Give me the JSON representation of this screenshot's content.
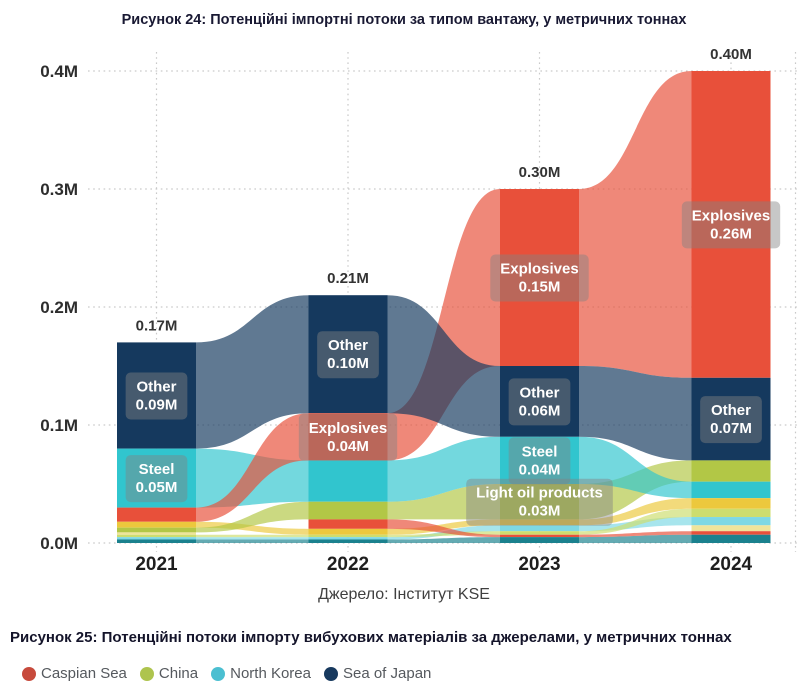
{
  "figure24": {
    "title": "Рисунок 24: Потенційні імпортні потоки за типом вантажу, у метричних тоннах",
    "source": "Джерело: Інститут KSE"
  },
  "figure25": {
    "title": "Рисунок 25: Потенційні потоки імпорту вибухових матеріалів за джерелами, у метричних тоннах",
    "legend": [
      {
        "label": "Caspian Sea",
        "color": "#c74a3c"
      },
      {
        "label": "China",
        "color": "#aec44e"
      },
      {
        "label": "North Korea",
        "color": "#4bbfd1"
      },
      {
        "label": "Sea of Japan",
        "color": "#17395e"
      }
    ]
  },
  "chart_data": [
    {
      "type": "area",
      "subtype": "flow-sankey-bump",
      "title": "Рисунок 24: Потенційні імпортні потоки за типом вантажу, у метричних тоннах",
      "source": "Джерело: Інститут KSE",
      "xlabel": "",
      "ylabel": "метричні тонни",
      "grid": "dotted",
      "legend_position": "none",
      "years": [
        "2021",
        "2022",
        "2023",
        "2024"
      ],
      "totals": [
        {
          "label": "0.17M",
          "value": 0.17
        },
        {
          "label": "0.21M",
          "value": 0.21
        },
        {
          "label": "0.30M",
          "value": 0.3
        },
        {
          "label": "0.40M",
          "value": 0.4
        }
      ],
      "y_axis": {
        "range": [
          0,
          0.4
        ],
        "ticks": [
          {
            "label": "0.4M",
            "value": 0.4
          },
          {
            "label": "0.3M",
            "value": 0.3
          },
          {
            "label": "0.2M",
            "value": 0.2
          },
          {
            "label": "0.1M",
            "value": 0.1
          },
          {
            "label": "0.0M",
            "value": 0.0
          }
        ]
      },
      "categories": {
        "red": {
          "name": "Explosives",
          "color": "#e8503a"
        },
        "navy": {
          "name": "Other",
          "color": "#15395e"
        },
        "teal": {
          "name": "Steel",
          "color": "#31c5ce"
        },
        "olive": {
          "name": "Light oil products",
          "color": "#b2c746"
        },
        "yellow": {
          "name": "",
          "color": "#ecc83d"
        },
        "lightgreen": {
          "name": "",
          "color": "#cddd6e"
        },
        "cyan": {
          "name": "",
          "color": "#7ed8e4"
        },
        "lightyellow": {
          "name": "",
          "color": "#efe49b"
        },
        "redsmall": {
          "name": "",
          "color": "#e8503a"
        },
        "darkteal": {
          "name": "",
          "color": "#1b818e"
        }
      },
      "paint_order": [
        "darkteal",
        "cyan",
        "lightyellow",
        "lightgreen",
        "yellow",
        "olive",
        "redsmall",
        "teal",
        "red",
        "navy"
      ],
      "stacks": [
        {
          "year": "2021",
          "total": 0.17,
          "segments": [
            {
              "cat": "navy",
              "value": 0.09,
              "label": "Other",
              "value_label": "0.09M"
            },
            {
              "cat": "teal",
              "value": 0.05,
              "label": "Steel",
              "value_label": "0.05M"
            },
            {
              "cat": "red",
              "value": 0.012
            },
            {
              "cat": "yellow",
              "value": 0.005
            },
            {
              "cat": "olive",
              "value": 0.004
            },
            {
              "cat": "lightyellow",
              "value": 0.002
            },
            {
              "cat": "lightgreen",
              "value": 0.002
            },
            {
              "cat": "cyan",
              "value": 0.002
            },
            {
              "cat": "darkteal",
              "value": 0.003
            }
          ]
        },
        {
          "year": "2022",
          "total": 0.21,
          "segments": [
            {
              "cat": "navy",
              "value": 0.1,
              "label": "Other",
              "value_label": "0.10M"
            },
            {
              "cat": "red",
              "value": 0.04,
              "label": "Explosives",
              "value_label": "0.04M"
            },
            {
              "cat": "teal",
              "value": 0.035
            },
            {
              "cat": "olive",
              "value": 0.015
            },
            {
              "cat": "redsmall",
              "value": 0.008
            },
            {
              "cat": "yellow",
              "value": 0.005
            },
            {
              "cat": "lightgreen",
              "value": 0.002
            },
            {
              "cat": "cyan",
              "value": 0.002
            },
            {
              "cat": "darkteal",
              "value": 0.003
            }
          ]
        },
        {
          "year": "2023",
          "total": 0.3,
          "segments": [
            {
              "cat": "red",
              "value": 0.15,
              "label": "Explosives",
              "value_label": "0.15M"
            },
            {
              "cat": "navy",
              "value": 0.06,
              "label": "Other",
              "value_label": "0.06M"
            },
            {
              "cat": "teal",
              "value": 0.04,
              "label": "Steel",
              "value_label": "0.04M"
            },
            {
              "cat": "olive",
              "value": 0.03,
              "label": "Light oil products",
              "value_label": "0.03M"
            },
            {
              "cat": "yellow",
              "value": 0.005
            },
            {
              "cat": "cyan",
              "value": 0.005
            },
            {
              "cat": "lightgreen",
              "value": 0.003
            },
            {
              "cat": "redsmall",
              "value": 0.002
            },
            {
              "cat": "darkteal",
              "value": 0.005
            }
          ]
        },
        {
          "year": "2024",
          "total": 0.4,
          "segments": [
            {
              "cat": "red",
              "value": 0.26,
              "label": "Explosives",
              "value_label": "0.26M"
            },
            {
              "cat": "navy",
              "value": 0.07,
              "label": "Other",
              "value_label": "0.07M"
            },
            {
              "cat": "olive",
              "value": 0.018
            },
            {
              "cat": "teal",
              "value": 0.014
            },
            {
              "cat": "yellow",
              "value": 0.009
            },
            {
              "cat": "lightgreen",
              "value": 0.007
            },
            {
              "cat": "cyan",
              "value": 0.007
            },
            {
              "cat": "lightyellow",
              "value": 0.005
            },
            {
              "cat": "redsmall",
              "value": 0.003
            },
            {
              "cat": "darkteal",
              "value": 0.007
            }
          ]
        }
      ]
    },
    {
      "type": "area",
      "title": "Рисунок 25: Потенційні потоки імпорту вибухових матеріалів за джерелами, у метричних тоннах",
      "legend": [
        {
          "label": "Caspian Sea",
          "color": "#c74a3c"
        },
        {
          "label": "China",
          "color": "#aec44e"
        },
        {
          "label": "North Korea",
          "color": "#4bbfd1"
        },
        {
          "label": "Sea of Japan",
          "color": "#17395e"
        }
      ]
    }
  ]
}
